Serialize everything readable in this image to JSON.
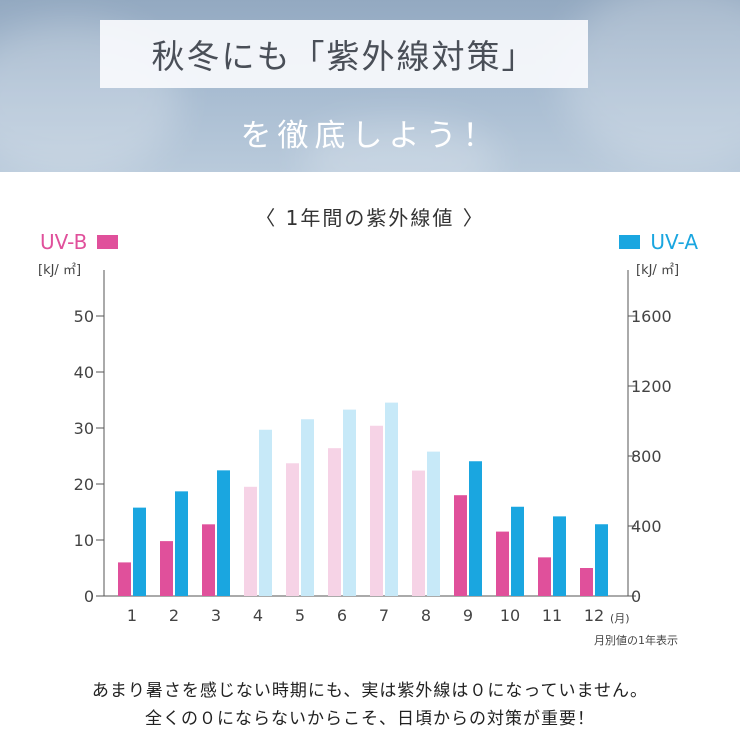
{
  "header": {
    "title_line1": "秋冬にも「紫外線対策」",
    "title_line2": "を徹底しよう！"
  },
  "chart_data": {
    "type": "bar",
    "title": "〈 1年間の紫外線値 〉",
    "categories": [
      "1",
      "2",
      "3",
      "4",
      "5",
      "6",
      "7",
      "8",
      "9",
      "10",
      "11",
      "12"
    ],
    "x_unit": "(月)",
    "series": [
      {
        "name": "UV-B",
        "axis": "left",
        "color": "#e0509b",
        "values": [
          6,
          9.8,
          12.8,
          19.5,
          23.7,
          26.4,
          30.4,
          22.4,
          18,
          11.5,
          6.9,
          5
        ]
      },
      {
        "name": "UV-A",
        "axis": "right",
        "color": "#1aa6e0",
        "values": [
          505,
          598,
          718,
          950,
          1010,
          1065,
          1105,
          825,
          770,
          510,
          455,
          410
        ]
      }
    ],
    "highlighted_months": [
      "1",
      "2",
      "3",
      "9",
      "10",
      "11",
      "12"
    ],
    "faded_colors": {
      "UV-B": "#f6d3e6",
      "UV-A": "#c7e9f8"
    },
    "left_axis": {
      "unit": "[kJ/ ㎡]",
      "ylim": [
        0,
        50
      ],
      "ticks": [
        0,
        10,
        20,
        30,
        40,
        50
      ]
    },
    "right_axis": {
      "unit": "[kJ/ ㎡]",
      "ylim": [
        0,
        1600
      ],
      "ticks": [
        0,
        400,
        800,
        1200,
        1600
      ]
    },
    "footnote": "月別値の1年表示"
  },
  "messages": {
    "line1": "あまり暑さを感じない時期にも、実は紫外線は０になっていません。",
    "line2": "全くの０にならないからこそ、日頃からの対策が重要！"
  }
}
